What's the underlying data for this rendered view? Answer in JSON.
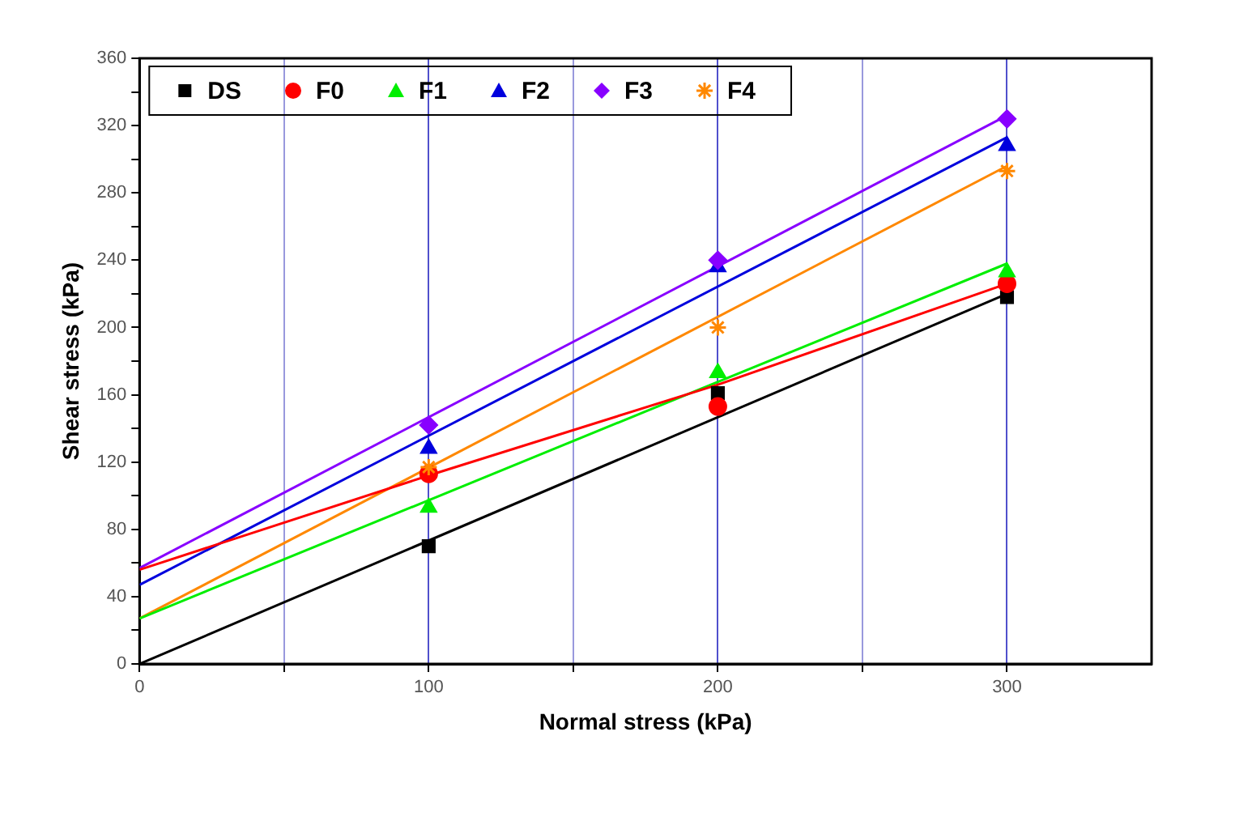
{
  "chart_data": {
    "type": "scatter",
    "xlabel": "Normal stress (kPa)",
    "ylabel": "Shear stress (kPa)",
    "xlim": [
      0,
      350
    ],
    "xticks": [
      0,
      {
        "value": 50,
        "label": null
      },
      100,
      {
        "value": 150,
        "label": null
      },
      200,
      {
        "value": 250,
        "label": null
      },
      300
    ],
    "ylim": [
      0,
      360
    ],
    "yticks": [
      0,
      {
        "value": 20,
        "label": null
      },
      40,
      {
        "value": 60,
        "label": null
      },
      80,
      {
        "value": 100,
        "label": null
      },
      120,
      {
        "value": 140,
        "label": null
      },
      160,
      {
        "value": 180,
        "label": null
      },
      200,
      {
        "value": 220,
        "label": null
      },
      240,
      {
        "value": 260,
        "label": null
      },
      280,
      {
        "value": 300,
        "label": null
      },
      320,
      {
        "value": 340,
        "label": null
      },
      360
    ],
    "grid": "x",
    "legend": "top left",
    "x": [
      100,
      200,
      300
    ],
    "series": [
      {
        "name": "DS",
        "color": "#000000",
        "marker": "square",
        "values": [
          70,
          161,
          218
        ]
      },
      {
        "name": "F0",
        "color": "#ff0000",
        "marker": "circle",
        "values": [
          113,
          153,
          226
        ]
      },
      {
        "name": "F1",
        "color": "#00ee00",
        "marker": "triangle",
        "values": [
          93,
          173,
          233
        ]
      },
      {
        "name": "F2",
        "color": "#0000dd",
        "marker": "triangle",
        "values": [
          128,
          236,
          308
        ]
      },
      {
        "name": "F3",
        "color": "#8800ff",
        "marker": "diamond",
        "values": [
          142,
          240,
          324
        ]
      },
      {
        "name": "F4",
        "color": "#ff8800",
        "marker": "cross",
        "values": [
          117,
          200,
          293
        ]
      },
      {
        "type": "line",
        "color": "#000000",
        "marker": "none",
        "x": [
          0,
          300
        ],
        "values": [
          0,
          220
        ]
      },
      {
        "type": "line",
        "color": "#ff0000",
        "marker": "none",
        "x": [
          0,
          100,
          200,
          300
        ],
        "values": [
          56,
          112,
          166,
          226
        ]
      },
      {
        "type": "line",
        "color": "#00ee00",
        "marker": "none",
        "x": [
          0,
          300
        ],
        "values": [
          27,
          238
        ]
      },
      {
        "type": "line",
        "color": "#0000dd",
        "marker": "none",
        "x": [
          0,
          300
        ],
        "values": [
          47,
          313
        ]
      },
      {
        "type": "line",
        "color": "#8800ff",
        "marker": "none",
        "x": [
          0,
          300
        ],
        "values": [
          57,
          326
        ]
      },
      {
        "type": "line",
        "color": "#ff8800",
        "marker": "none",
        "x": [
          0,
          300
        ],
        "values": [
          27,
          296
        ]
      }
    ]
  }
}
